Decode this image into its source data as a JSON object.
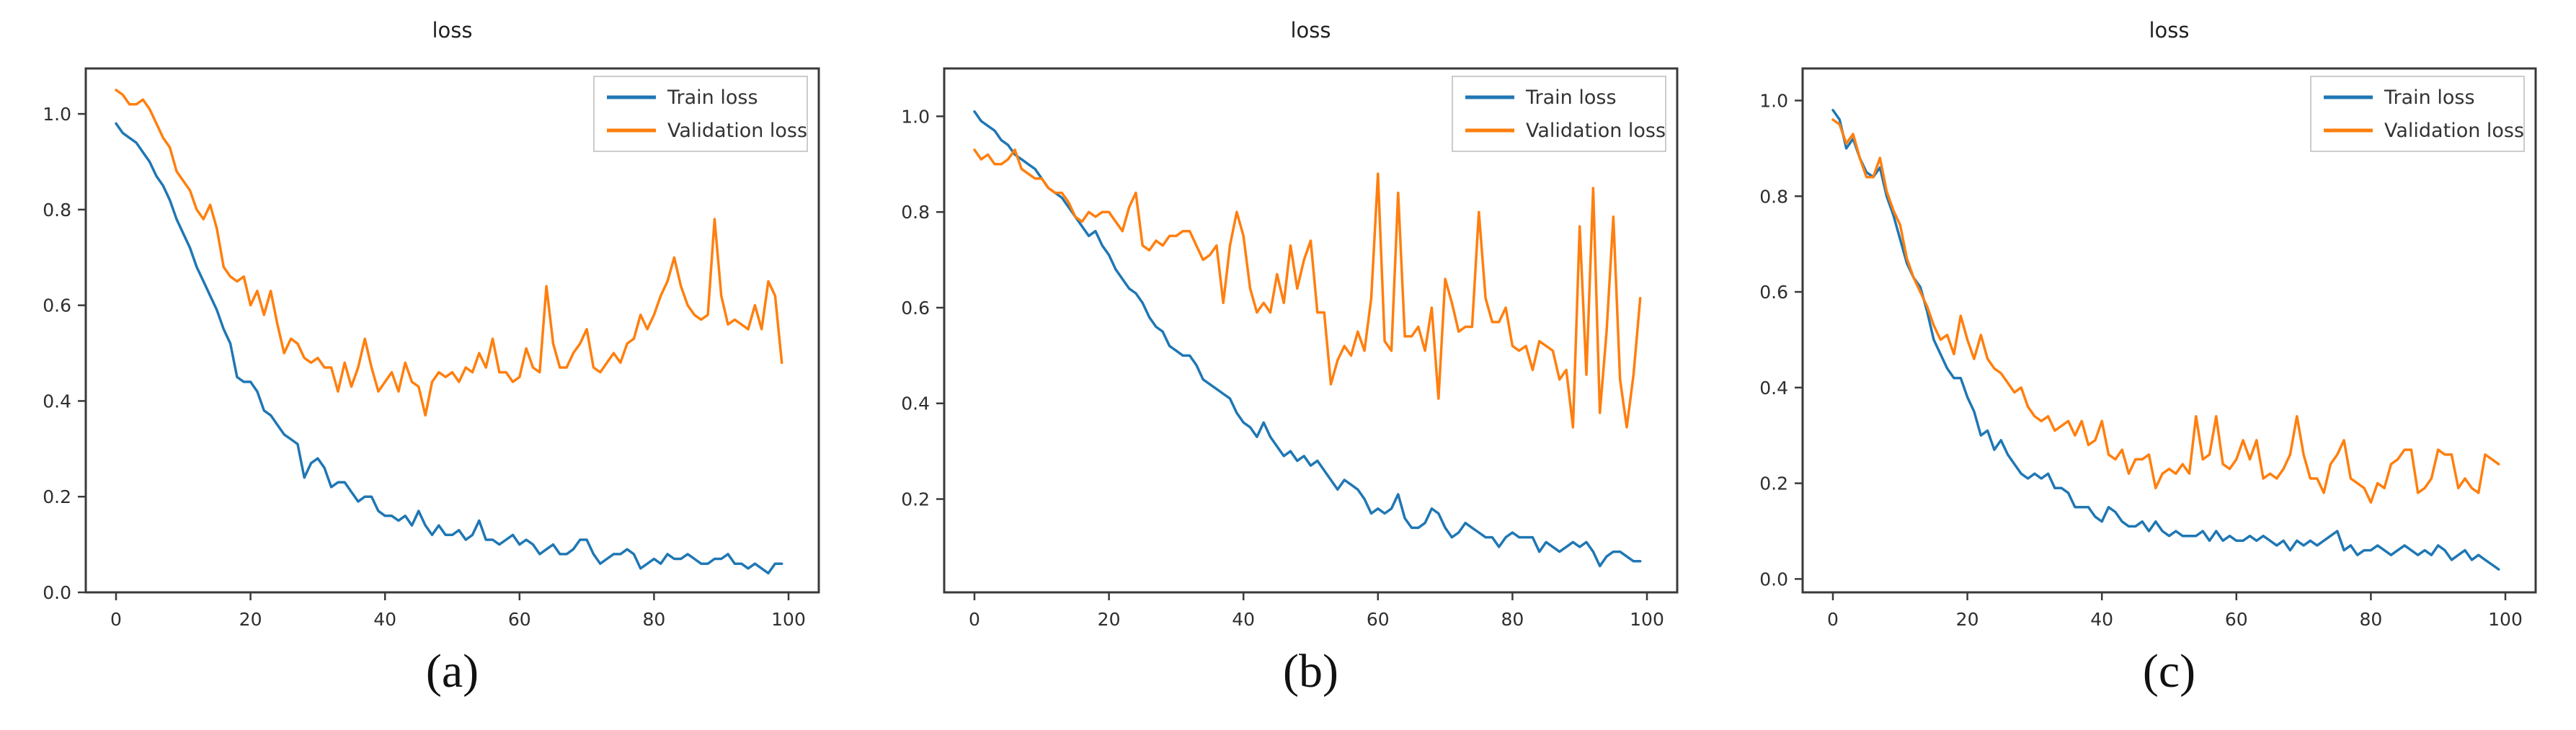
{
  "style": {
    "background": "#ffffff",
    "train_color": "#1f77b4",
    "validation_color": "#ff7f0e",
    "axis_color": "#3a3a3a",
    "tick_label_color": "#2e2e2e",
    "title_color": "#222222",
    "legend_border_color": "#cccccc",
    "legend_text_color": "#333333"
  },
  "legend": {
    "position": "upper right",
    "entries": [
      "Train loss",
      "Validation loss"
    ]
  },
  "chart_data": [
    {
      "type": "line",
      "title": "loss",
      "caption": "(a)",
      "xlabel": "",
      "ylabel": "",
      "grid": false,
      "legend_position": "upper right",
      "xlim": [
        -4.5,
        104.5
      ],
      "ylim": [
        0.0,
        1.095
      ],
      "xticks": [
        0,
        20,
        40,
        60,
        80,
        100
      ],
      "yticks": [
        0.0,
        0.2,
        0.4,
        0.6,
        0.8,
        1.0
      ],
      "x_start": 0,
      "x_step": 1,
      "series": [
        {
          "name": "Train loss",
          "color": "#1f77b4",
          "values": [
            0.98,
            0.96,
            0.95,
            0.94,
            0.92,
            0.9,
            0.87,
            0.85,
            0.82,
            0.78,
            0.75,
            0.72,
            0.68,
            0.65,
            0.62,
            0.59,
            0.55,
            0.52,
            0.45,
            0.44,
            0.44,
            0.42,
            0.38,
            0.37,
            0.35,
            0.33,
            0.32,
            0.31,
            0.24,
            0.27,
            0.28,
            0.26,
            0.22,
            0.23,
            0.23,
            0.21,
            0.19,
            0.2,
            0.2,
            0.17,
            0.16,
            0.16,
            0.15,
            0.16,
            0.14,
            0.17,
            0.14,
            0.12,
            0.14,
            0.12,
            0.12,
            0.13,
            0.11,
            0.12,
            0.15,
            0.11,
            0.11,
            0.1,
            0.11,
            0.12,
            0.1,
            0.11,
            0.1,
            0.08,
            0.09,
            0.1,
            0.08,
            0.08,
            0.09,
            0.11,
            0.11,
            0.08,
            0.06,
            0.07,
            0.08,
            0.08,
            0.09,
            0.08,
            0.05,
            0.06,
            0.07,
            0.06,
            0.08,
            0.07,
            0.07,
            0.08,
            0.07,
            0.06,
            0.06,
            0.07,
            0.07,
            0.08,
            0.06,
            0.06,
            0.05,
            0.06,
            0.05,
            0.04,
            0.06,
            0.06
          ]
        },
        {
          "name": "Validation loss",
          "color": "#ff7f0e",
          "values": [
            1.05,
            1.04,
            1.02,
            1.02,
            1.03,
            1.01,
            0.98,
            0.95,
            0.93,
            0.88,
            0.86,
            0.84,
            0.8,
            0.78,
            0.81,
            0.76,
            0.68,
            0.66,
            0.65,
            0.66,
            0.6,
            0.63,
            0.58,
            0.63,
            0.56,
            0.5,
            0.53,
            0.52,
            0.49,
            0.48,
            0.49,
            0.47,
            0.47,
            0.42,
            0.48,
            0.43,
            0.47,
            0.53,
            0.47,
            0.42,
            0.44,
            0.46,
            0.42,
            0.48,
            0.44,
            0.43,
            0.37,
            0.44,
            0.46,
            0.45,
            0.46,
            0.44,
            0.47,
            0.46,
            0.5,
            0.47,
            0.53,
            0.46,
            0.46,
            0.44,
            0.45,
            0.51,
            0.47,
            0.46,
            0.64,
            0.52,
            0.47,
            0.47,
            0.5,
            0.52,
            0.55,
            0.47,
            0.46,
            0.48,
            0.5,
            0.48,
            0.52,
            0.53,
            0.58,
            0.55,
            0.58,
            0.62,
            0.65,
            0.7,
            0.64,
            0.6,
            0.58,
            0.57,
            0.58,
            0.78,
            0.62,
            0.56,
            0.57,
            0.56,
            0.55,
            0.6,
            0.55,
            0.65,
            0.62,
            0.48
          ]
        }
      ]
    },
    {
      "type": "line",
      "title": "loss",
      "caption": "(b)",
      "xlabel": "",
      "ylabel": "",
      "grid": false,
      "legend_position": "upper right",
      "xlim": [
        -4.5,
        104.5
      ],
      "ylim": [
        0.005,
        1.1
      ],
      "xticks": [
        0,
        20,
        40,
        60,
        80,
        100
      ],
      "yticks": [
        0.2,
        0.4,
        0.6,
        0.8,
        1.0
      ],
      "x_start": 0,
      "x_step": 1,
      "series": [
        {
          "name": "Train loss",
          "color": "#1f77b4",
          "values": [
            1.01,
            0.99,
            0.98,
            0.97,
            0.95,
            0.94,
            0.92,
            0.91,
            0.9,
            0.89,
            0.87,
            0.85,
            0.84,
            0.83,
            0.81,
            0.79,
            0.77,
            0.75,
            0.76,
            0.73,
            0.71,
            0.68,
            0.66,
            0.64,
            0.63,
            0.61,
            0.58,
            0.56,
            0.55,
            0.52,
            0.51,
            0.5,
            0.5,
            0.48,
            0.45,
            0.44,
            0.43,
            0.42,
            0.41,
            0.38,
            0.36,
            0.35,
            0.33,
            0.36,
            0.33,
            0.31,
            0.29,
            0.3,
            0.28,
            0.29,
            0.27,
            0.28,
            0.26,
            0.24,
            0.22,
            0.24,
            0.23,
            0.22,
            0.2,
            0.17,
            0.18,
            0.17,
            0.18,
            0.21,
            0.16,
            0.14,
            0.14,
            0.15,
            0.18,
            0.17,
            0.14,
            0.12,
            0.13,
            0.15,
            0.14,
            0.13,
            0.12,
            0.12,
            0.1,
            0.12,
            0.13,
            0.12,
            0.12,
            0.12,
            0.09,
            0.11,
            0.1,
            0.09,
            0.1,
            0.11,
            0.1,
            0.11,
            0.09,
            0.06,
            0.08,
            0.09,
            0.09,
            0.08,
            0.07,
            0.07
          ]
        },
        {
          "name": "Validation loss",
          "color": "#ff7f0e",
          "values": [
            0.93,
            0.91,
            0.92,
            0.9,
            0.9,
            0.91,
            0.93,
            0.89,
            0.88,
            0.87,
            0.87,
            0.85,
            0.84,
            0.84,
            0.82,
            0.79,
            0.78,
            0.8,
            0.79,
            0.8,
            0.8,
            0.78,
            0.76,
            0.81,
            0.84,
            0.73,
            0.72,
            0.74,
            0.73,
            0.75,
            0.75,
            0.76,
            0.76,
            0.73,
            0.7,
            0.71,
            0.73,
            0.61,
            0.73,
            0.8,
            0.75,
            0.64,
            0.59,
            0.61,
            0.59,
            0.67,
            0.61,
            0.73,
            0.64,
            0.7,
            0.74,
            0.59,
            0.59,
            0.44,
            0.49,
            0.52,
            0.5,
            0.55,
            0.51,
            0.62,
            0.88,
            0.53,
            0.51,
            0.84,
            0.54,
            0.54,
            0.56,
            0.51,
            0.6,
            0.41,
            0.66,
            0.61,
            0.55,
            0.56,
            0.56,
            0.8,
            0.62,
            0.57,
            0.57,
            0.6,
            0.52,
            0.51,
            0.52,
            0.47,
            0.53,
            0.52,
            0.51,
            0.45,
            0.47,
            0.35,
            0.77,
            0.46,
            0.85,
            0.38,
            0.55,
            0.79,
            0.45,
            0.35,
            0.46,
            0.62
          ]
        }
      ]
    },
    {
      "type": "line",
      "title": "loss",
      "caption": "(c)",
      "xlabel": "",
      "ylabel": "",
      "grid": false,
      "legend_position": "upper right",
      "xlim": [
        -4.5,
        104.5
      ],
      "ylim": [
        -0.028,
        1.067
      ],
      "xticks": [
        0,
        20,
        40,
        60,
        80,
        100
      ],
      "yticks": [
        0.0,
        0.2,
        0.4,
        0.6,
        0.8,
        1.0
      ],
      "x_start": 0,
      "x_step": 1,
      "series": [
        {
          "name": "Train loss",
          "color": "#1f77b4",
          "values": [
            0.98,
            0.96,
            0.9,
            0.92,
            0.88,
            0.85,
            0.84,
            0.86,
            0.8,
            0.76,
            0.71,
            0.66,
            0.63,
            0.61,
            0.56,
            0.5,
            0.47,
            0.44,
            0.42,
            0.42,
            0.38,
            0.35,
            0.3,
            0.31,
            0.27,
            0.29,
            0.26,
            0.24,
            0.22,
            0.21,
            0.22,
            0.21,
            0.22,
            0.19,
            0.19,
            0.18,
            0.15,
            0.15,
            0.15,
            0.13,
            0.12,
            0.15,
            0.14,
            0.12,
            0.11,
            0.11,
            0.12,
            0.1,
            0.12,
            0.1,
            0.09,
            0.1,
            0.09,
            0.09,
            0.09,
            0.1,
            0.08,
            0.1,
            0.08,
            0.09,
            0.08,
            0.08,
            0.09,
            0.08,
            0.09,
            0.08,
            0.07,
            0.08,
            0.06,
            0.08,
            0.07,
            0.08,
            0.07,
            0.08,
            0.09,
            0.1,
            0.06,
            0.07,
            0.05,
            0.06,
            0.06,
            0.07,
            0.06,
            0.05,
            0.06,
            0.07,
            0.06,
            0.05,
            0.06,
            0.05,
            0.07,
            0.06,
            0.04,
            0.05,
            0.06,
            0.04,
            0.05,
            0.04,
            0.03,
            0.02
          ]
        },
        {
          "name": "Validation loss",
          "color": "#ff7f0e",
          "values": [
            0.96,
            0.95,
            0.91,
            0.93,
            0.88,
            0.84,
            0.84,
            0.88,
            0.81,
            0.77,
            0.74,
            0.67,
            0.63,
            0.6,
            0.57,
            0.53,
            0.5,
            0.51,
            0.47,
            0.55,
            0.5,
            0.46,
            0.51,
            0.46,
            0.44,
            0.43,
            0.41,
            0.39,
            0.4,
            0.36,
            0.34,
            0.33,
            0.34,
            0.31,
            0.32,
            0.33,
            0.3,
            0.33,
            0.28,
            0.29,
            0.33,
            0.26,
            0.25,
            0.27,
            0.22,
            0.25,
            0.25,
            0.26,
            0.19,
            0.22,
            0.23,
            0.22,
            0.24,
            0.22,
            0.34,
            0.25,
            0.26,
            0.34,
            0.24,
            0.23,
            0.25,
            0.29,
            0.25,
            0.29,
            0.21,
            0.22,
            0.21,
            0.23,
            0.26,
            0.34,
            0.26,
            0.21,
            0.21,
            0.18,
            0.24,
            0.26,
            0.29,
            0.21,
            0.2,
            0.19,
            0.16,
            0.2,
            0.19,
            0.24,
            0.25,
            0.27,
            0.27,
            0.18,
            0.19,
            0.21,
            0.27,
            0.26,
            0.26,
            0.19,
            0.21,
            0.19,
            0.18,
            0.26,
            0.25,
            0.24
          ]
        }
      ]
    }
  ]
}
